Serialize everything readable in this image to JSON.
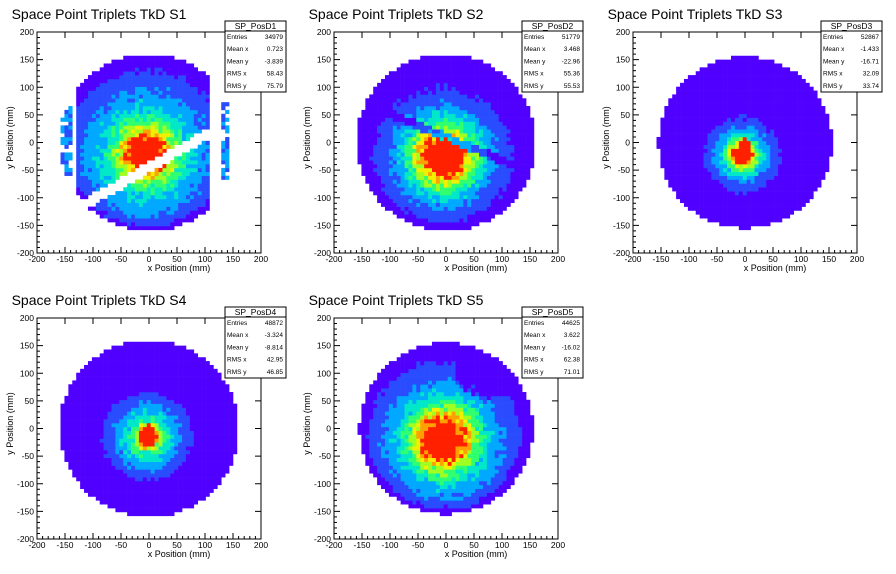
{
  "colors": {
    "background": "#ffffff",
    "palette": [
      "#5000ff",
      "#2a4cff",
      "#00a8ff",
      "#00e8c8",
      "#30ff70",
      "#a0ff20",
      "#f0f000",
      "#ffa000",
      "#ff2000"
    ],
    "frame": "#000000"
  },
  "chart_data": [
    {
      "type": "heatmap",
      "title": "Space Point Triplets TkD S1",
      "xlabel": "x Position (mm)",
      "ylabel": "y Position (mm)",
      "xlim": [
        -200,
        200
      ],
      "ylim": [
        -200,
        200
      ],
      "x_ticks": [
        -200,
        -150,
        -100,
        -50,
        0,
        50,
        100,
        150,
        200
      ],
      "y_ticks": [
        -200,
        -150,
        -100,
        -50,
        0,
        50,
        100,
        150,
        200
      ],
      "bin_size_mm": 7,
      "grid": false,
      "legend_position": "top-right",
      "stats": {
        "name": "SP_PosD1",
        "rows": [
          {
            "label": "Entries",
            "value": "34979"
          },
          {
            "label": "Mean x",
            "value": "0.723"
          },
          {
            "label": "Mean y",
            "value": "-3.839"
          },
          {
            "label": "RMS x",
            "value": "58.43"
          },
          {
            "label": "RMS y",
            "value": "75.79"
          }
        ]
      },
      "distribution": {
        "disk_radius_mm": 160,
        "clip_x_mm": [
          -130,
          105
        ],
        "clip_y_mm": [
          -160,
          155
        ],
        "core": {
          "x": -5,
          "y": -20,
          "sigma": 28
        },
        "spread_sigma": 85,
        "diagonal_gap": {
          "slope": 0.58,
          "offset_mm": -45,
          "width_mm": 11
        },
        "side_strips_x_mm": [
          [
            -155,
            -140
          ],
          [
            130,
            145
          ]
        ],
        "peak_value": 1
      }
    },
    {
      "type": "heatmap",
      "title": "Space Point Triplets TkD S2",
      "xlabel": "x Position (mm)",
      "ylabel": "y Position (mm)",
      "xlim": [
        -200,
        200
      ],
      "ylim": [
        -200,
        200
      ],
      "x_ticks": [
        -200,
        -150,
        -100,
        -50,
        0,
        50,
        100,
        150,
        200
      ],
      "y_ticks": [
        -200,
        -150,
        -100,
        -50,
        0,
        50,
        100,
        150,
        200
      ],
      "bin_size_mm": 7,
      "grid": false,
      "legend_position": "top-right",
      "stats": {
        "name": "SP_PosD2",
        "rows": [
          {
            "label": "Entries",
            "value": "51779"
          },
          {
            "label": "Mean x",
            "value": "3.468"
          },
          {
            "label": "Mean y",
            "value": "-22.96"
          },
          {
            "label": "RMS x",
            "value": "55.36"
          },
          {
            "label": "RMS y",
            "value": "55.53"
          }
        ]
      },
      "distribution": {
        "disk_radius_mm": 160,
        "core": {
          "x": -5,
          "y": -25,
          "sigma": 30
        },
        "spread_sigma": 70,
        "diagonal_dead_band": {
          "slope": -0.42,
          "offset_mm": 10,
          "width_mm": 8
        },
        "peak_value": 1
      }
    },
    {
      "type": "heatmap",
      "title": "Space Point Triplets TkD S3",
      "xlabel": "x Position (mm)",
      "ylabel": "y Position (mm)",
      "xlim": [
        -200,
        200
      ],
      "ylim": [
        -200,
        200
      ],
      "x_ticks": [
        -200,
        -150,
        -100,
        -50,
        0,
        50,
        100,
        150,
        200
      ],
      "y_ticks": [
        -200,
        -150,
        -100,
        -50,
        0,
        50,
        100,
        150,
        200
      ],
      "bin_size_mm": 7,
      "grid": false,
      "legend_position": "top-right",
      "stats": {
        "name": "SP_PosD3",
        "rows": [
          {
            "label": "Entries",
            "value": "52867"
          },
          {
            "label": "Mean x",
            "value": "-1.433"
          },
          {
            "label": "Mean y",
            "value": "-16.71"
          },
          {
            "label": "RMS x",
            "value": "32.09"
          },
          {
            "label": "RMS y",
            "value": "33.74"
          }
        ]
      },
      "distribution": {
        "disk_radius_mm": 155,
        "core": {
          "x": -5,
          "y": -22,
          "sigma": 14
        },
        "spread_sigma": 38,
        "peak_value": 1
      }
    },
    {
      "type": "heatmap",
      "title": "Space Point Triplets TkD S4",
      "xlabel": "x Position (mm)",
      "ylabel": "y Position (mm)",
      "xlim": [
        -200,
        200
      ],
      "ylim": [
        -200,
        200
      ],
      "x_ticks": [
        -200,
        -150,
        -100,
        -50,
        0,
        50,
        100,
        150,
        200
      ],
      "y_ticks": [
        -200,
        -150,
        -100,
        -50,
        0,
        50,
        100,
        150,
        200
      ],
      "bin_size_mm": 7,
      "grid": false,
      "legend_position": "top-right",
      "stats": {
        "name": "SP_PosD4",
        "rows": [
          {
            "label": "Entries",
            "value": "48872"
          },
          {
            "label": "Mean x",
            "value": "-3.324"
          },
          {
            "label": "Mean y",
            "value": "-8.814"
          },
          {
            "label": "RMS x",
            "value": "42.95"
          },
          {
            "label": "RMS y",
            "value": "46.85"
          }
        ]
      },
      "distribution": {
        "disk_radius_mm": 160,
        "core": {
          "x": -3,
          "y": -15,
          "sigma": 12
        },
        "spread_sigma": 45,
        "peak_value": 1
      }
    },
    {
      "type": "heatmap",
      "title": "Space Point Triplets TkD S5",
      "xlabel": "x Position (mm)",
      "ylabel": "y Position (mm)",
      "xlim": [
        -200,
        200
      ],
      "ylim": [
        -200,
        200
      ],
      "x_ticks": [
        -200,
        -150,
        -100,
        -50,
        0,
        50,
        100,
        150,
        200
      ],
      "y_ticks": [
        -200,
        -150,
        -100,
        -50,
        0,
        50,
        100,
        150,
        200
      ],
      "bin_size_mm": 7,
      "grid": false,
      "legend_position": "top-right",
      "stats": {
        "name": "SP_PosD5",
        "rows": [
          {
            "label": "Entries",
            "value": "44625"
          },
          {
            "label": "Mean x",
            "value": "3.622"
          },
          {
            "label": "Mean y",
            "value": "-16.02"
          },
          {
            "label": "RMS x",
            "value": "62.38"
          },
          {
            "label": "RMS y",
            "value": "71.01"
          }
        ]
      },
      "distribution": {
        "disk_radius_mm": 155,
        "core": {
          "x": -5,
          "y": -20,
          "sigma": 32
        },
        "spread_sigma": 80,
        "dark_corner": {
          "x": 70,
          "y": 110,
          "radius_mm": 55
        },
        "peak_value": 1
      }
    }
  ]
}
